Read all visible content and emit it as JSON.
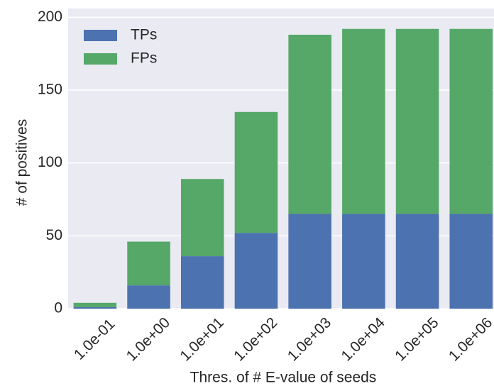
{
  "chart_data": {
    "type": "bar",
    "stacked": true,
    "xlabel": "Thres. of # E-value of seeds",
    "ylabel": "# of positives",
    "categories": [
      "1.0e-01",
      "1.0e+00",
      "1.0e+01",
      "1.0e+02",
      "1.0e+03",
      "1.0e+04",
      "1.0e+05",
      "1.0e+06"
    ],
    "series": [
      {
        "name": "TPs",
        "color": "#4c72b0",
        "values": [
          1,
          16,
          36,
          52,
          65,
          65,
          65,
          65
        ]
      },
      {
        "name": "FPs",
        "color": "#55a868",
        "values": [
          3,
          30,
          53,
          83,
          123,
          127,
          127,
          127
        ]
      }
    ],
    "ylim": [
      0,
      206
    ],
    "yticks": [
      0,
      50,
      100,
      150,
      200
    ],
    "grid": true,
    "legend": "upper left"
  }
}
